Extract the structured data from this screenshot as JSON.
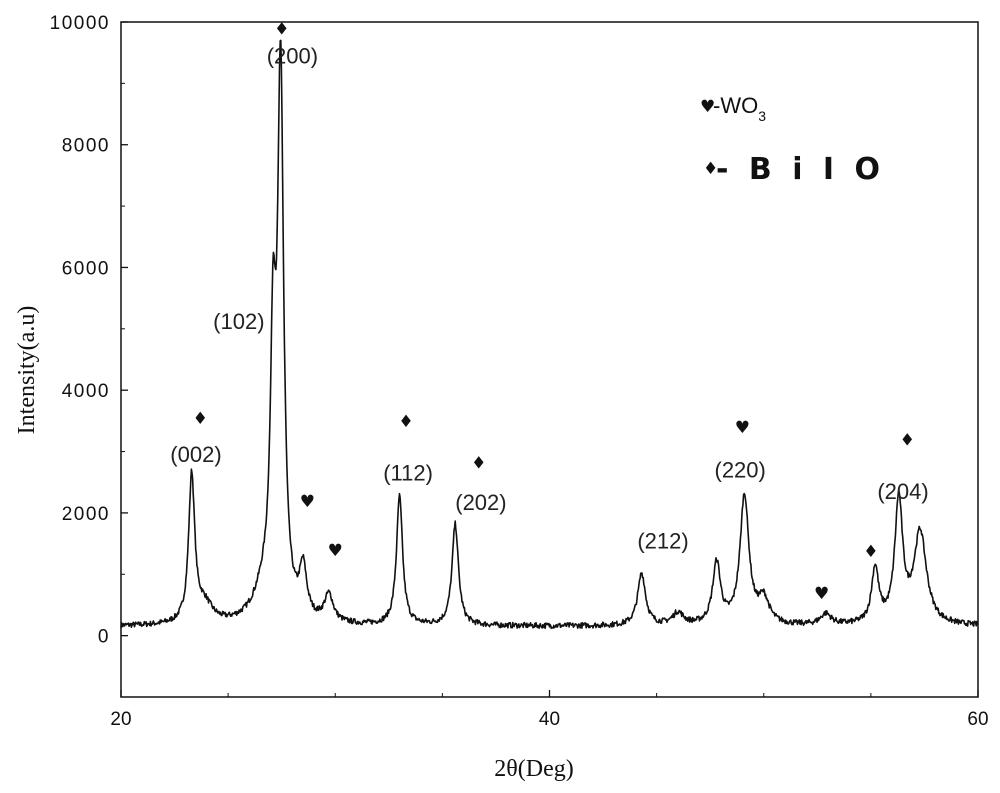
{
  "chart_data": {
    "type": "line",
    "xlabel": "2θ(Deg)",
    "ylabel": "Intensity(a.u)",
    "xlim": [
      20,
      60
    ],
    "ylim": [
      -1000,
      10000
    ],
    "xticks": [
      20,
      40,
      60
    ],
    "yticks": [
      0,
      2000,
      4000,
      6000,
      8000,
      10000
    ],
    "grid": false,
    "legend": {
      "position": "top-right",
      "entries": [
        {
          "symbol": "heart",
          "glyph": "♥",
          "text": "-WO",
          "subscript": "3"
        },
        {
          "symbol": "diamond",
          "glyph": "♦",
          "text": "- B i I O"
        }
      ]
    },
    "baseline": 150,
    "series": [
      {
        "name": "",
        "peaks": [
          {
            "x": 23.3,
            "height": 2400,
            "width": 0.17
          },
          {
            "x": 23.9,
            "height": 300,
            "width": 0.45
          },
          {
            "x": 27.1,
            "height": 4000,
            "width": 0.15
          },
          {
            "x": 27.45,
            "height": 8700,
            "width": 0.17
          },
          {
            "x": 26.7,
            "height": 500,
            "width": 0.6
          },
          {
            "x": 28.5,
            "height": 800,
            "width": 0.2
          },
          {
            "x": 29.7,
            "height": 450,
            "width": 0.25
          },
          {
            "x": 33.0,
            "height": 2100,
            "width": 0.17
          },
          {
            "x": 35.6,
            "height": 1650,
            "width": 0.18
          },
          {
            "x": 44.3,
            "height": 850,
            "width": 0.22
          },
          {
            "x": 46.0,
            "height": 200,
            "width": 0.3
          },
          {
            "x": 47.8,
            "height": 1000,
            "width": 0.22
          },
          {
            "x": 49.1,
            "height": 2100,
            "width": 0.25
          },
          {
            "x": 50.0,
            "height": 400,
            "width": 0.3
          },
          {
            "x": 52.9,
            "height": 180,
            "width": 0.3
          },
          {
            "x": 55.2,
            "height": 900,
            "width": 0.2
          },
          {
            "x": 56.3,
            "height": 2000,
            "width": 0.22
          },
          {
            "x": 57.3,
            "height": 1500,
            "width": 0.35
          }
        ]
      }
    ],
    "peak_labels": [
      {
        "text": "(002)",
        "x": 23.5,
        "y": 2830
      },
      {
        "text": "(102)",
        "x": 25.5,
        "y": 5000
      },
      {
        "text": "(200)",
        "x": 28.0,
        "y": 9320
      },
      {
        "text": "(112)",
        "x": 33.4,
        "y": 2530
      },
      {
        "text": "(202)",
        "x": 36.8,
        "y": 2050
      },
      {
        "text": "(212)",
        "x": 45.3,
        "y": 1420
      },
      {
        "text": "(220)",
        "x": 48.9,
        "y": 2580
      },
      {
        "text": "(204)",
        "x": 56.5,
        "y": 2230
      }
    ],
    "markers": [
      {
        "glyph": "♦",
        "x": 23.7,
        "y": 3450
      },
      {
        "glyph": "♦",
        "x": 27.5,
        "y": 9800
      },
      {
        "glyph": "♥",
        "x": 28.7,
        "y": 2100
      },
      {
        "glyph": "♥",
        "x": 30.0,
        "y": 1300
      },
      {
        "glyph": "♦",
        "x": 33.3,
        "y": 3400
      },
      {
        "glyph": "♦",
        "x": 36.7,
        "y": 2720
      },
      {
        "glyph": "♥",
        "x": 49.0,
        "y": 3300
      },
      {
        "glyph": "♥",
        "x": 52.7,
        "y": 600
      },
      {
        "glyph": "♦",
        "x": 55.0,
        "y": 1280
      },
      {
        "glyph": "♦",
        "x": 56.7,
        "y": 3100
      }
    ]
  }
}
